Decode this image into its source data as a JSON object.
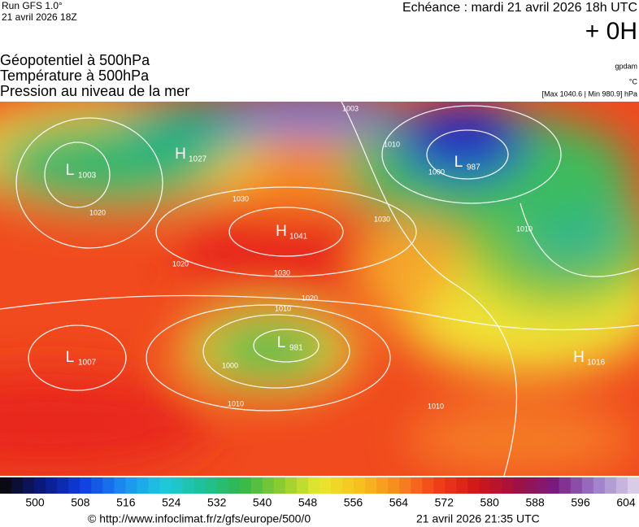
{
  "header": {
    "run": "Run GFS 1.0°",
    "run_date": "21 avril 2026 18Z",
    "echeance": "Echéance : mardi 21 avril 2026 18h UTC",
    "lead": "+ 0H"
  },
  "titles": [
    "Géopotentiel à 500hPa",
    "Température à 500hPa",
    "Pression au niveau de la mer"
  ],
  "units": {
    "geopotential": "gpdam",
    "temperature": "°C",
    "extremes": "[Max 1040.6 | Min 980.9] hPa"
  },
  "centers": [
    {
      "type": "L",
      "value": 1003
    },
    {
      "type": "H",
      "value": 1027
    },
    {
      "type": "H",
      "value": 1041
    },
    {
      "type": "L",
      "value": 987
    },
    {
      "type": "L",
      "value": 981
    },
    {
      "type": "L",
      "value": 1007
    },
    {
      "type": "H",
      "value": 1016
    }
  ],
  "isobar_labels": [
    1003,
    1010,
    1000,
    1020,
    1030,
    1030,
    1020,
    1030,
    1020,
    1010,
    1000,
    1010,
    1010,
    1010
  ],
  "colorbar": {
    "labels": [
      500,
      508,
      516,
      524,
      532,
      540,
      548,
      556,
      564,
      572,
      580,
      588,
      596,
      604
    ]
  },
  "footer": {
    "url": "© http://www.infoclimat.fr/z/gfs/europe/500/0",
    "timestamp": "21 avril 2026 21:35 UTC"
  }
}
